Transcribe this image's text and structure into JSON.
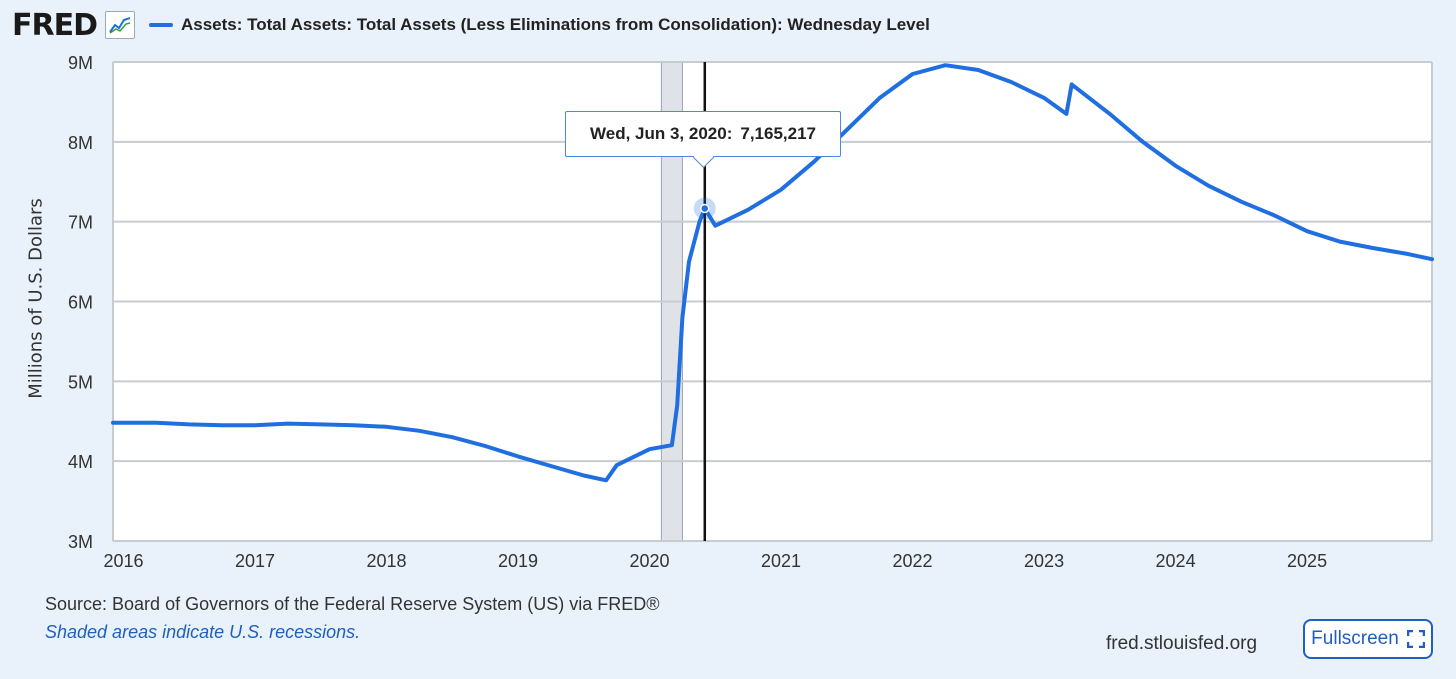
{
  "header": {
    "logo": "FRED",
    "legend_label": "Assets: Total Assets: Total Assets (Less Eliminations from Consolidation): Wednesday Level"
  },
  "colors": {
    "series": "#1f6fe0",
    "recession": "#dfe3e7",
    "background": "#e9f1fa",
    "link": "#1f5fbf"
  },
  "tooltip": {
    "date": "Wed, Jun 3, 2020:",
    "value": "7,165,217"
  },
  "footer": {
    "source": "Source: Board of Governors of the Federal Reserve System (US) via FRED®",
    "recession_note": "Shaded areas indicate U.S. recessions.",
    "site": "fred.stlouisfed.org",
    "fullscreen_label": "Fullscreen"
  },
  "chart_data": {
    "type": "line",
    "ylabel": "Millions of U.S. Dollars",
    "ylim": [
      3000000,
      9000000
    ],
    "xlim": [
      2015.92,
      2025.95
    ],
    "y_ticks": [
      "3M",
      "4M",
      "5M",
      "6M",
      "7M",
      "8M",
      "9M"
    ],
    "x_ticks": [
      "2016",
      "2017",
      "2018",
      "2019",
      "2020",
      "2021",
      "2022",
      "2023",
      "2024",
      "2025"
    ],
    "grid": true,
    "recession": [
      2020.09,
      2020.25
    ],
    "highlight": {
      "x": 2020.42,
      "y": 7165217
    },
    "series": [
      {
        "values": [
          [
            2015.92,
            4480000
          ],
          [
            2016.25,
            4480000
          ],
          [
            2016.5,
            4460000
          ],
          [
            2016.75,
            4450000
          ],
          [
            2017.0,
            4450000
          ],
          [
            2017.25,
            4470000
          ],
          [
            2017.5,
            4460000
          ],
          [
            2017.75,
            4450000
          ],
          [
            2018.0,
            4430000
          ],
          [
            2018.25,
            4380000
          ],
          [
            2018.5,
            4300000
          ],
          [
            2018.75,
            4190000
          ],
          [
            2019.0,
            4060000
          ],
          [
            2019.25,
            3940000
          ],
          [
            2019.5,
            3820000
          ],
          [
            2019.67,
            3760000
          ],
          [
            2019.75,
            3950000
          ],
          [
            2020.0,
            4150000
          ],
          [
            2020.17,
            4200000
          ],
          [
            2020.21,
            4700000
          ],
          [
            2020.25,
            5800000
          ],
          [
            2020.3,
            6500000
          ],
          [
            2020.38,
            7000000
          ],
          [
            2020.42,
            7165217
          ],
          [
            2020.5,
            6950000
          ],
          [
            2020.75,
            7150000
          ],
          [
            2021.0,
            7400000
          ],
          [
            2021.25,
            7750000
          ],
          [
            2021.5,
            8150000
          ],
          [
            2021.75,
            8550000
          ],
          [
            2022.0,
            8850000
          ],
          [
            2022.25,
            8960000
          ],
          [
            2022.5,
            8900000
          ],
          [
            2022.75,
            8750000
          ],
          [
            2023.0,
            8550000
          ],
          [
            2023.17,
            8350000
          ],
          [
            2023.21,
            8720000
          ],
          [
            2023.5,
            8350000
          ],
          [
            2023.75,
            8000000
          ],
          [
            2024.0,
            7700000
          ],
          [
            2024.25,
            7450000
          ],
          [
            2024.5,
            7250000
          ],
          [
            2024.75,
            7080000
          ],
          [
            2025.0,
            6880000
          ],
          [
            2025.25,
            6750000
          ],
          [
            2025.5,
            6670000
          ],
          [
            2025.75,
            6600000
          ],
          [
            2025.95,
            6530000
          ]
        ]
      }
    ]
  }
}
